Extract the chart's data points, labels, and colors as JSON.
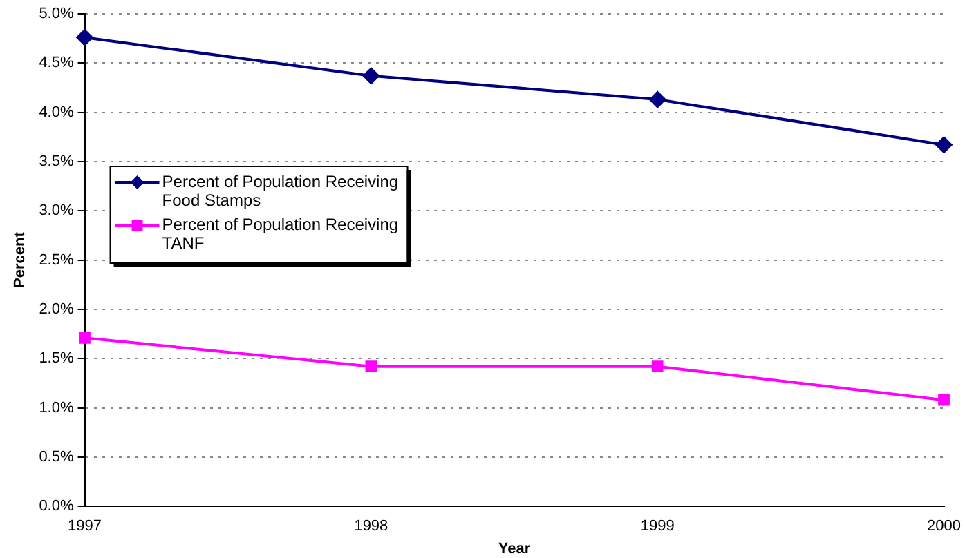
{
  "chart_data": {
    "type": "line",
    "xlabel": "Year",
    "ylabel": "Percent",
    "categories": [
      "1997",
      "1998",
      "1999",
      "2000"
    ],
    "series": [
      {
        "name": "Percent of Population Receiving Food Stamps",
        "color": "#000080",
        "values": [
          4.76,
          4.37,
          4.13,
          3.67
        ],
        "marker": "diamond"
      },
      {
        "name": "Percent of Population Receiving TANF",
        "color": "#ff00ff",
        "values": [
          1.71,
          1.42,
          1.42,
          1.08
        ],
        "marker": "square"
      }
    ],
    "ylim": [
      0,
      5
    ],
    "yticks": [
      {
        "value": 0,
        "label": "0.0%"
      },
      {
        "value": 0.5,
        "label": "0.5%"
      },
      {
        "value": 1,
        "label": "1.0%"
      },
      {
        "value": 1.5,
        "label": "1.5%"
      },
      {
        "value": 2,
        "label": "2.0%"
      },
      {
        "value": 2.5,
        "label": "2.5%"
      },
      {
        "value": 3,
        "label": "3.0%"
      },
      {
        "value": 3.5,
        "label": "3.5%"
      },
      {
        "value": 4,
        "label": "4.0%"
      },
      {
        "value": 4.5,
        "label": "4.5%"
      },
      {
        "value": 5,
        "label": "5.0%"
      }
    ],
    "grid": "y",
    "legend": "left",
    "line_style": "solid"
  }
}
